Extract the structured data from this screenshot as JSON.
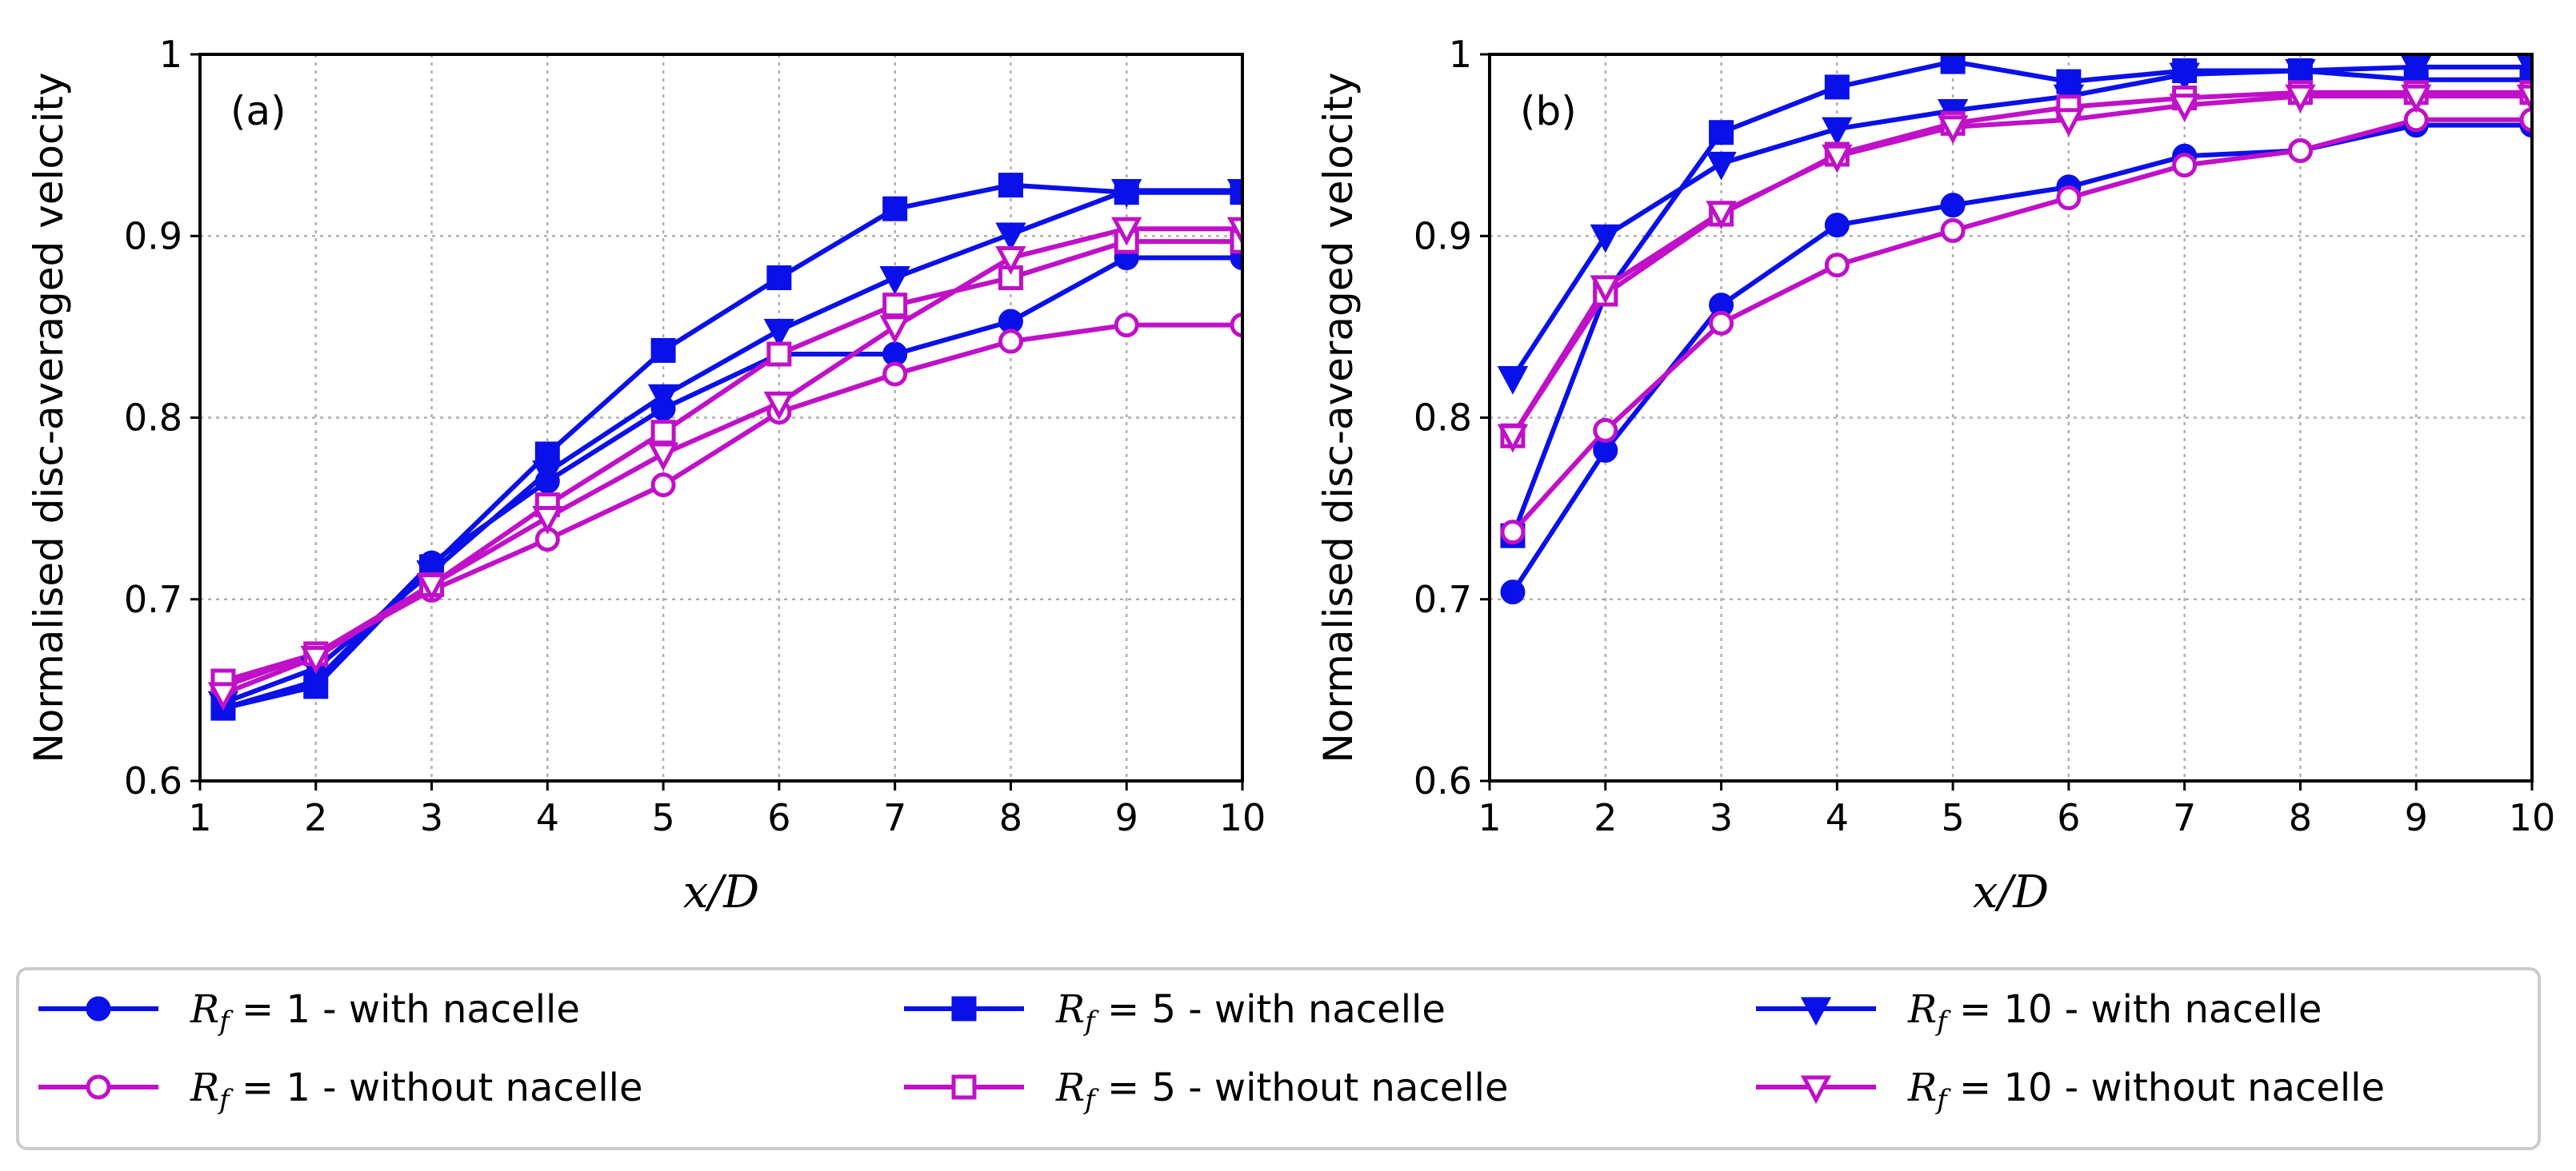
{
  "colors": {
    "with_nacelle": "#0a10e8",
    "without_nacelle": "#c010c8"
  },
  "legend": {
    "placement": "bottom",
    "entries": [
      {
        "math": "R",
        "sub": "f",
        "eq": " = 1",
        "text": " - with nacelle",
        "group": "with",
        "marker": "circle"
      },
      {
        "math": "R",
        "sub": "f",
        "eq": " = 5",
        "text": " - with nacelle",
        "group": "with",
        "marker": "square"
      },
      {
        "math": "R",
        "sub": "f",
        "eq": " = 10",
        "text": " - with nacelle",
        "group": "with",
        "marker": "triangle-down"
      },
      {
        "math": "R",
        "sub": "f",
        "eq": " = 1",
        "text": " - without nacelle",
        "group": "without",
        "marker": "circle"
      },
      {
        "math": "R",
        "sub": "f",
        "eq": " = 5",
        "text": " - without nacelle",
        "group": "without",
        "marker": "square"
      },
      {
        "math": "R",
        "sub": "f",
        "eq": " = 10",
        "text": " - without nacelle",
        "group": "without",
        "marker": "triangle-down"
      }
    ]
  },
  "chart_data": [
    {
      "type": "line",
      "panel_label": "(a)",
      "xlabel": "x/D",
      "ylabel": "Normalised disc-averaged velocity",
      "xlim": [
        1,
        10
      ],
      "ylim": [
        0.6,
        1.0
      ],
      "xticks": [
        "1",
        "2",
        "3",
        "4",
        "5",
        "6",
        "7",
        "8",
        "9",
        "10"
      ],
      "yticks": [
        "0.6",
        "0.7",
        "0.8",
        "0.9",
        "1"
      ],
      "grid": true,
      "x": [
        1.2,
        2,
        3,
        4,
        5,
        6,
        7,
        8,
        9,
        10
      ],
      "series": [
        {
          "name": "R_f = 1 - with nacelle",
          "group": "with",
          "marker": "circle",
          "values": [
            0.64,
            0.655,
            0.72,
            0.765,
            0.805,
            0.835,
            0.835,
            0.853,
            0.888,
            0.888
          ]
        },
        {
          "name": "R_f = 5 - with nacelle",
          "group": "with",
          "marker": "square",
          "values": [
            0.64,
            0.652,
            0.718,
            0.78,
            0.837,
            0.877,
            0.915,
            0.928,
            0.924,
            0.924
          ]
        },
        {
          "name": "R_f = 10 - with nacelle",
          "group": "with",
          "marker": "triangle-down",
          "values": [
            0.643,
            0.662,
            0.715,
            0.77,
            0.812,
            0.848,
            0.877,
            0.901,
            0.925,
            0.925
          ]
        },
        {
          "name": "R_f = 1 - without nacelle",
          "group": "without",
          "marker": "circle",
          "values": [
            0.652,
            0.67,
            0.705,
            0.733,
            0.763,
            0.803,
            0.824,
            0.842,
            0.851,
            0.851
          ]
        },
        {
          "name": "R_f = 5 - without nacelle",
          "group": "without",
          "marker": "square",
          "values": [
            0.655,
            0.67,
            0.708,
            0.752,
            0.792,
            0.835,
            0.862,
            0.877,
            0.897,
            0.897
          ]
        },
        {
          "name": "R_f = 10 - without nacelle",
          "group": "without",
          "marker": "triangle-down",
          "values": [
            0.648,
            0.668,
            0.708,
            0.745,
            0.78,
            0.808,
            0.85,
            0.888,
            0.904,
            0.904
          ]
        }
      ]
    },
    {
      "type": "line",
      "panel_label": "(b)",
      "xlabel": "x/D",
      "ylabel": "Normalised disc-averaged velocity",
      "xlim": [
        1,
        10
      ],
      "ylim": [
        0.6,
        1.0
      ],
      "xticks": [
        "1",
        "2",
        "3",
        "4",
        "5",
        "6",
        "7",
        "8",
        "9",
        "10"
      ],
      "yticks": [
        "0.6",
        "0.7",
        "0.8",
        "0.9",
        "1"
      ],
      "grid": true,
      "x": [
        1.2,
        2,
        3,
        4,
        5,
        6,
        7,
        8,
        9,
        10
      ],
      "series": [
        {
          "name": "R_f = 1 - with nacelle",
          "group": "with",
          "marker": "circle",
          "values": [
            0.704,
            0.782,
            0.862,
            0.906,
            0.917,
            0.927,
            0.944,
            0.947,
            0.961,
            0.961
          ]
        },
        {
          "name": "R_f = 5 - with nacelle",
          "group": "with",
          "marker": "square",
          "values": [
            0.735,
            0.868,
            0.957,
            0.982,
            0.996,
            0.985,
            0.991,
            0.991,
            0.986,
            0.986
          ]
        },
        {
          "name": "R_f = 10 - with nacelle",
          "group": "with",
          "marker": "triangle-down",
          "values": [
            0.822,
            0.9,
            0.94,
            0.959,
            0.969,
            0.977,
            0.989,
            0.991,
            0.993,
            0.993
          ]
        },
        {
          "name": "R_f = 1 - without nacelle",
          "group": "without",
          "marker": "circle",
          "values": [
            0.737,
            0.793,
            0.852,
            0.884,
            0.903,
            0.921,
            0.939,
            0.947,
            0.964,
            0.964
          ]
        },
        {
          "name": "R_f = 5 - without nacelle",
          "group": "without",
          "marker": "square",
          "values": [
            0.79,
            0.868,
            0.912,
            0.945,
            0.962,
            0.971,
            0.976,
            0.979,
            0.979,
            0.979
          ]
        },
        {
          "name": "R_f = 10 - without nacelle",
          "group": "without",
          "marker": "triangle-down",
          "values": [
            0.79,
            0.872,
            0.913,
            0.944,
            0.96,
            0.964,
            0.972,
            0.977,
            0.977,
            0.977
          ]
        }
      ]
    }
  ]
}
